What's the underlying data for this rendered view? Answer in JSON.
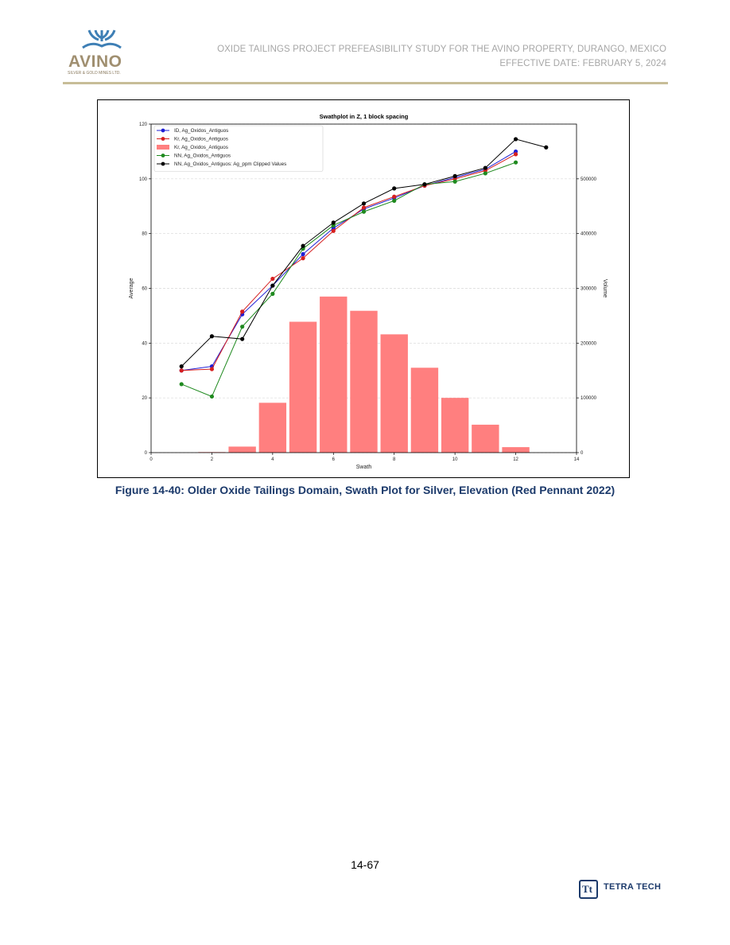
{
  "header": {
    "logo": {
      "name": "AVINO",
      "subtitle": "SILVER & GOLD MINES LTD.",
      "icon": "avino-waves-logo",
      "color": "#a08f70",
      "icon_color": "#3e7fb5"
    },
    "title_line1": "OXIDE TAILINGS PROJECT PREFEASIBILITY STUDY FOR THE AVINO PROPERTY, DURANGO, MEXICO",
    "title_line2": "EFFECTIVE DATE: FEBRUARY 5, 2024",
    "rule_color": "#c7bd98"
  },
  "figure": {
    "caption": "Figure 14-40: Older Oxide Tailings Domain, Swath Plot for Silver, Elevation (Red Pennant 2022)",
    "caption_color": "#1c3a6b"
  },
  "chart_data": {
    "type": "bar",
    "title": "Swathplot in Z, 1 block spacing",
    "xlabel": "Swath",
    "ylabel": "Average",
    "y2label": "Volume",
    "xlim": [
      0,
      14
    ],
    "ylim": [
      0,
      120
    ],
    "y2lim": [
      0,
      600000
    ],
    "x_ticks": [
      0,
      2,
      4,
      6,
      8,
      10,
      12,
      14
    ],
    "y_ticks": [
      0,
      20,
      40,
      60,
      80,
      100,
      120
    ],
    "y2_ticks": [
      0,
      100000,
      200000,
      300000,
      400000,
      500000
    ],
    "grid": true,
    "legend_position": "top-left",
    "bars": {
      "name": "Kr, Ag_Oxidos_Antiguos",
      "color": "#ff7f7f",
      "axis": "right",
      "x": [
        2,
        3,
        4,
        5,
        6,
        7,
        8,
        9,
        10,
        11,
        12
      ],
      "values": [
        1000,
        11000,
        91000,
        239000,
        285000,
        259000,
        216000,
        155000,
        100000,
        51000,
        10000
      ]
    },
    "series": [
      {
        "name": "ID, Ag_Oxidos_Antiguos",
        "color": "#1f1fd6",
        "x": [
          1,
          2,
          3,
          4,
          5,
          6,
          7,
          8,
          9,
          10,
          11,
          12
        ],
        "values": [
          30,
          31.5,
          50.5,
          61,
          72.5,
          82,
          89,
          93,
          97.5,
          100.5,
          103.5,
          110
        ]
      },
      {
        "name": "Kr, Ag_Oxidos_Antiguos",
        "color": "#d61f1f",
        "x": [
          1,
          2,
          3,
          4,
          5,
          6,
          7,
          8,
          9,
          10,
          11,
          12
        ],
        "values": [
          30,
          30.5,
          51.5,
          63.5,
          71,
          81,
          89.5,
          93.5,
          97.5,
          100,
          103,
          109
        ]
      },
      {
        "name": "NN, Ag_Oxidos_Antiguos",
        "color": "#1f8a1f",
        "x": [
          1,
          2,
          3,
          4,
          5,
          6,
          7,
          8,
          9,
          10,
          11,
          12
        ],
        "values": [
          25,
          20.5,
          46,
          58,
          74.5,
          83,
          88,
          92,
          98,
          99,
          102,
          106
        ]
      },
      {
        "name": "NN, Ag_Oxidos_Antiguos: Ag_ppm Clipped Values",
        "color": "#000000",
        "x": [
          1,
          2,
          3,
          4,
          5,
          6,
          7,
          8,
          9,
          10,
          11,
          12,
          13
        ],
        "values": [
          31.5,
          42.5,
          41.5,
          61,
          75.5,
          84,
          91,
          96.5,
          98,
          101,
          104,
          114.5,
          111.5
        ]
      }
    ],
    "legend": [
      {
        "label": "ID, Ag_Oxidos_Antiguos",
        "kind": "line",
        "color": "#1f1fd6"
      },
      {
        "label": "Kr, Ag_Oxidos_Antiguos",
        "kind": "line",
        "color": "#d61f1f"
      },
      {
        "label": "Kr, Ag_Oxidos_Antiguos",
        "kind": "bar",
        "color": "#ff7f7f"
      },
      {
        "label": "NN, Ag_Oxidos_Antiguos",
        "kind": "line",
        "color": "#1f8a1f"
      },
      {
        "label": "NN, Ag_Oxidos_Antiguos: Ag_ppm Clipped Values",
        "kind": "line",
        "color": "#000000"
      }
    ]
  },
  "footer": {
    "page_number": "14-67",
    "logo_mark": "Tt",
    "logo_text": "TETRA TECH",
    "logo_color": "#1c3a6b"
  }
}
